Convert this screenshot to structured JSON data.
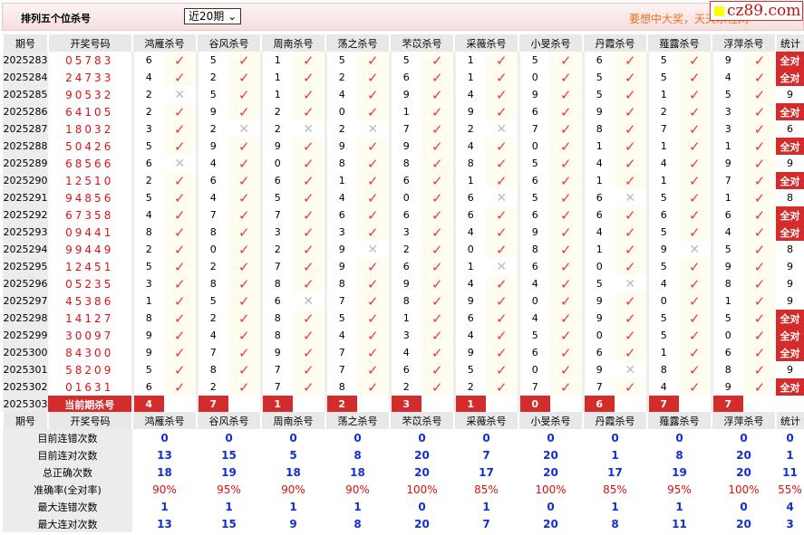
{
  "header": {
    "title": "排列五个位杀号",
    "select_value": "近20期",
    "promo": "要想中大奖，天天杀社网",
    "logo": "cz89.com"
  },
  "columns": {
    "period": "期号",
    "draw": "开奖号码",
    "experts": [
      "鸿雁杀号",
      "谷风杀号",
      "周南杀号",
      "荡之杀号",
      "芣苡杀号",
      "采薇杀号",
      "小旻杀号",
      "丹霞杀号",
      "薤露杀号",
      "浮萍杀号"
    ],
    "stat": "统计"
  },
  "full_label": "全对",
  "rows": [
    {
      "period": "2025283",
      "draw": "05783",
      "kills": [
        6,
        5,
        1,
        5,
        5,
        1,
        5,
        6,
        5,
        9
      ],
      "hits": [
        1,
        1,
        1,
        1,
        1,
        1,
        1,
        1,
        1,
        1
      ],
      "stat": "全对"
    },
    {
      "period": "2025284",
      "draw": "24733",
      "kills": [
        4,
        2,
        1,
        2,
        6,
        1,
        0,
        5,
        5,
        4
      ],
      "hits": [
        1,
        1,
        1,
        1,
        1,
        1,
        1,
        1,
        1,
        1
      ],
      "stat": "全对"
    },
    {
      "period": "2025285",
      "draw": "90532",
      "kills": [
        2,
        5,
        1,
        4,
        9,
        4,
        9,
        5,
        1,
        5
      ],
      "hits": [
        0,
        1,
        1,
        1,
        1,
        1,
        1,
        1,
        1,
        1
      ],
      "stat": "9"
    },
    {
      "period": "2025286",
      "draw": "64105",
      "kills": [
        2,
        9,
        2,
        0,
        1,
        9,
        6,
        9,
        2,
        3
      ],
      "hits": [
        1,
        1,
        1,
        1,
        1,
        1,
        1,
        1,
        1,
        1
      ],
      "stat": "全对"
    },
    {
      "period": "2025287",
      "draw": "18032",
      "kills": [
        3,
        2,
        2,
        2,
        7,
        2,
        7,
        8,
        7,
        3
      ],
      "hits": [
        1,
        0,
        0,
        0,
        1,
        0,
        1,
        1,
        1,
        1
      ],
      "stat": "6"
    },
    {
      "period": "2025288",
      "draw": "50426",
      "kills": [
        5,
        9,
        9,
        9,
        9,
        4,
        0,
        1,
        1,
        1
      ],
      "hits": [
        1,
        1,
        1,
        1,
        1,
        1,
        1,
        1,
        1,
        1
      ],
      "stat": "全对"
    },
    {
      "period": "2025289",
      "draw": "68566",
      "kills": [
        6,
        4,
        0,
        8,
        8,
        8,
        5,
        4,
        4,
        9
      ],
      "hits": [
        0,
        1,
        1,
        1,
        1,
        1,
        1,
        1,
        1,
        1
      ],
      "stat": "9"
    },
    {
      "period": "2025290",
      "draw": "12510",
      "kills": [
        2,
        6,
        6,
        1,
        6,
        1,
        6,
        1,
        1,
        7
      ],
      "hits": [
        1,
        1,
        1,
        1,
        1,
        1,
        1,
        1,
        1,
        1
      ],
      "stat": "全对"
    },
    {
      "period": "2025291",
      "draw": "94856",
      "kills": [
        5,
        4,
        5,
        4,
        0,
        6,
        5,
        6,
        5,
        1
      ],
      "hits": [
        1,
        1,
        1,
        1,
        1,
        0,
        1,
        0,
        1,
        1
      ],
      "stat": "8"
    },
    {
      "period": "2025292",
      "draw": "67358",
      "kills": [
        4,
        7,
        7,
        6,
        6,
        6,
        6,
        6,
        6,
        6
      ],
      "hits": [
        1,
        1,
        1,
        1,
        1,
        1,
        1,
        1,
        1,
        1
      ],
      "stat": "全对"
    },
    {
      "period": "2025293",
      "draw": "09441",
      "kills": [
        8,
        8,
        3,
        3,
        3,
        4,
        9,
        4,
        5,
        4
      ],
      "hits": [
        1,
        1,
        1,
        1,
        1,
        1,
        1,
        1,
        1,
        1
      ],
      "stat": "全对"
    },
    {
      "period": "2025294",
      "draw": "99449",
      "kills": [
        2,
        0,
        2,
        9,
        2,
        0,
        8,
        1,
        9,
        5
      ],
      "hits": [
        1,
        1,
        1,
        0,
        1,
        1,
        1,
        1,
        0,
        1
      ],
      "stat": "8"
    },
    {
      "period": "2025295",
      "draw": "12451",
      "kills": [
        5,
        2,
        7,
        9,
        6,
        1,
        6,
        0,
        5,
        9
      ],
      "hits": [
        1,
        1,
        1,
        1,
        1,
        0,
        1,
        1,
        1,
        1
      ],
      "stat": "9"
    },
    {
      "period": "2025296",
      "draw": "05235",
      "kills": [
        3,
        8,
        8,
        8,
        9,
        4,
        4,
        5,
        4,
        8
      ],
      "hits": [
        1,
        1,
        1,
        1,
        1,
        1,
        1,
        0,
        1,
        1
      ],
      "stat": "9"
    },
    {
      "period": "2025297",
      "draw": "45386",
      "kills": [
        1,
        5,
        6,
        7,
        8,
        9,
        0,
        9,
        0,
        1
      ],
      "hits": [
        1,
        1,
        0,
        1,
        1,
        1,
        1,
        1,
        1,
        1
      ],
      "stat": "9"
    },
    {
      "period": "2025298",
      "draw": "14127",
      "kills": [
        8,
        2,
        8,
        5,
        1,
        6,
        4,
        9,
        5,
        5
      ],
      "hits": [
        1,
        1,
        1,
        1,
        1,
        1,
        1,
        1,
        1,
        1
      ],
      "stat": "全对"
    },
    {
      "period": "2025299",
      "draw": "30097",
      "kills": [
        9,
        4,
        8,
        4,
        3,
        4,
        5,
        0,
        5,
        0
      ],
      "hits": [
        1,
        1,
        1,
        1,
        1,
        1,
        1,
        1,
        1,
        1
      ],
      "stat": "全对"
    },
    {
      "period": "2025300",
      "draw": "84300",
      "kills": [
        9,
        7,
        9,
        7,
        4,
        9,
        6,
        6,
        1,
        6
      ],
      "hits": [
        1,
        1,
        1,
        1,
        1,
        1,
        1,
        1,
        1,
        1
      ],
      "stat": "全对"
    },
    {
      "period": "2025301",
      "draw": "58209",
      "kills": [
        5,
        8,
        7,
        7,
        6,
        5,
        0,
        9,
        8,
        8
      ],
      "hits": [
        1,
        1,
        1,
        1,
        1,
        1,
        1,
        0,
        1,
        1
      ],
      "stat": "9"
    },
    {
      "period": "2025302",
      "draw": "01631",
      "kills": [
        6,
        2,
        7,
        8,
        2,
        2,
        7,
        7,
        4,
        9
      ],
      "hits": [
        1,
        1,
        1,
        1,
        1,
        1,
        1,
        1,
        1,
        1
      ],
      "stat": "全对"
    }
  ],
  "current": {
    "period": "2025303",
    "label": "当前期杀号",
    "kills": [
      4,
      7,
      1,
      2,
      3,
      1,
      0,
      6,
      7,
      7
    ]
  },
  "stats": [
    {
      "label": "目前连错次数",
      "values": [
        "0",
        "0",
        "0",
        "0",
        "0",
        "0",
        "0",
        "0",
        "0",
        "0",
        "0"
      ]
    },
    {
      "label": "目前连对次数",
      "values": [
        "13",
        "15",
        "5",
        "8",
        "20",
        "7",
        "20",
        "1",
        "8",
        "20",
        "1"
      ]
    },
    {
      "label": "总正确次数",
      "values": [
        "18",
        "19",
        "18",
        "18",
        "20",
        "17",
        "20",
        "17",
        "19",
        "20",
        "11"
      ]
    },
    {
      "label": "准确率(全对率)",
      "values": [
        "90%",
        "95%",
        "90%",
        "90%",
        "100%",
        "85%",
        "100%",
        "85%",
        "95%",
        "100%",
        "55%"
      ]
    },
    {
      "label": "最大连错次数",
      "values": [
        "1",
        "1",
        "1",
        "1",
        "0",
        "1",
        "0",
        "1",
        "1",
        "0",
        "4"
      ]
    },
    {
      "label": "最大连对次数",
      "values": [
        "13",
        "15",
        "9",
        "8",
        "20",
        "7",
        "20",
        "8",
        "11",
        "20",
        "3"
      ]
    }
  ],
  "colors": {
    "hit": "#e5394a",
    "miss": "#bbbbbb",
    "badge": "#d42c2c",
    "stat_blue": "#1030d0",
    "stat_red": "#e01010"
  }
}
